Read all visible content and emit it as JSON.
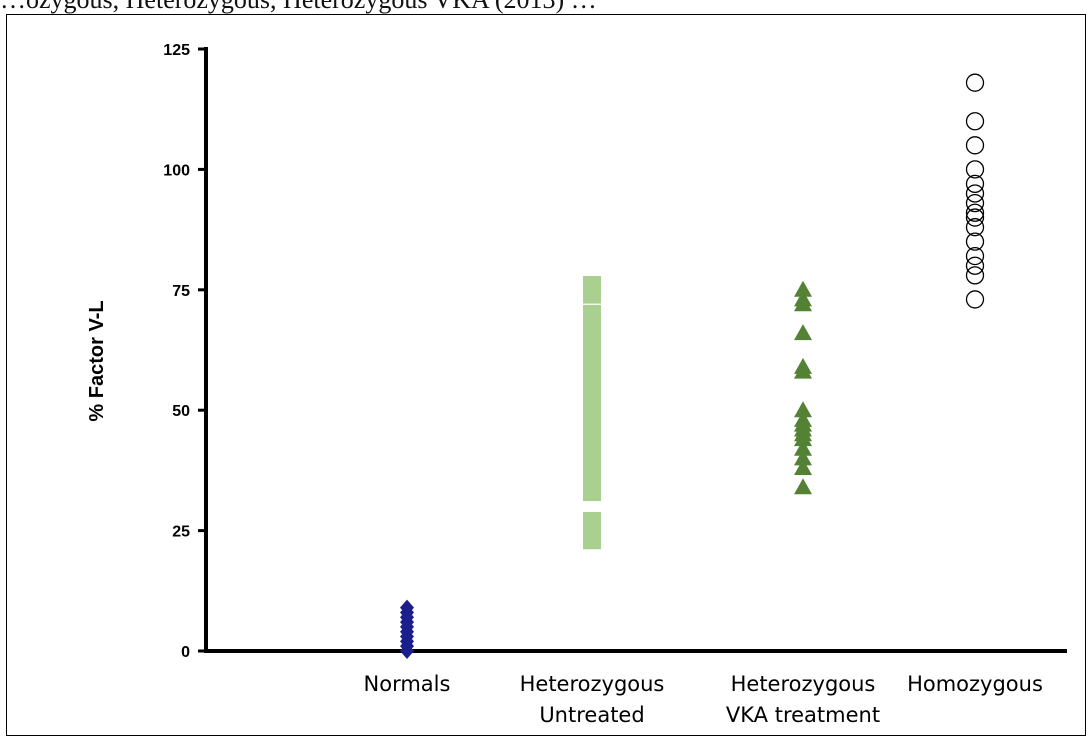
{
  "caption": "…ozygous, Heterozygous, Heterozygous VKA (2013) …",
  "chart_data": {
    "type": "scatter",
    "ylabel": "% Factor V-L",
    "xlabel": "",
    "ylim": [
      0,
      125
    ],
    "y_ticks": [
      0,
      25,
      50,
      75,
      100,
      125
    ],
    "grid": false,
    "categories": [
      [
        "Normals"
      ],
      [
        "Heterozygous",
        "Untreated"
      ],
      [
        "Heterozygous",
        "VKA treatment"
      ],
      [
        "Homozygous"
      ]
    ],
    "series": [
      {
        "category_index": 0,
        "marker": "diamond",
        "color": "#1a1f8c",
        "values": [
          0,
          1,
          2,
          3,
          4,
          5,
          6,
          7,
          8,
          9
        ]
      },
      {
        "category_index": 1,
        "marker": "square",
        "color": "#a9d08e",
        "values": [
          23,
          25,
          27,
          33,
          35,
          37,
          40,
          42,
          44,
          46,
          48,
          50,
          52,
          54,
          56,
          58,
          60,
          62,
          64,
          66,
          68,
          70,
          74,
          76
        ]
      },
      {
        "category_index": 2,
        "marker": "triangle",
        "color": "#548235",
        "values": [
          34,
          38,
          40,
          42,
          44,
          45,
          46,
          47,
          48,
          50,
          58,
          59,
          66,
          72,
          73,
          75
        ]
      },
      {
        "category_index": 3,
        "marker": "circle",
        "color": "#000000",
        "values": [
          73,
          78,
          80,
          82,
          85,
          88,
          90,
          91,
          93,
          95,
          97,
          100,
          105,
          110,
          118
        ]
      }
    ]
  }
}
